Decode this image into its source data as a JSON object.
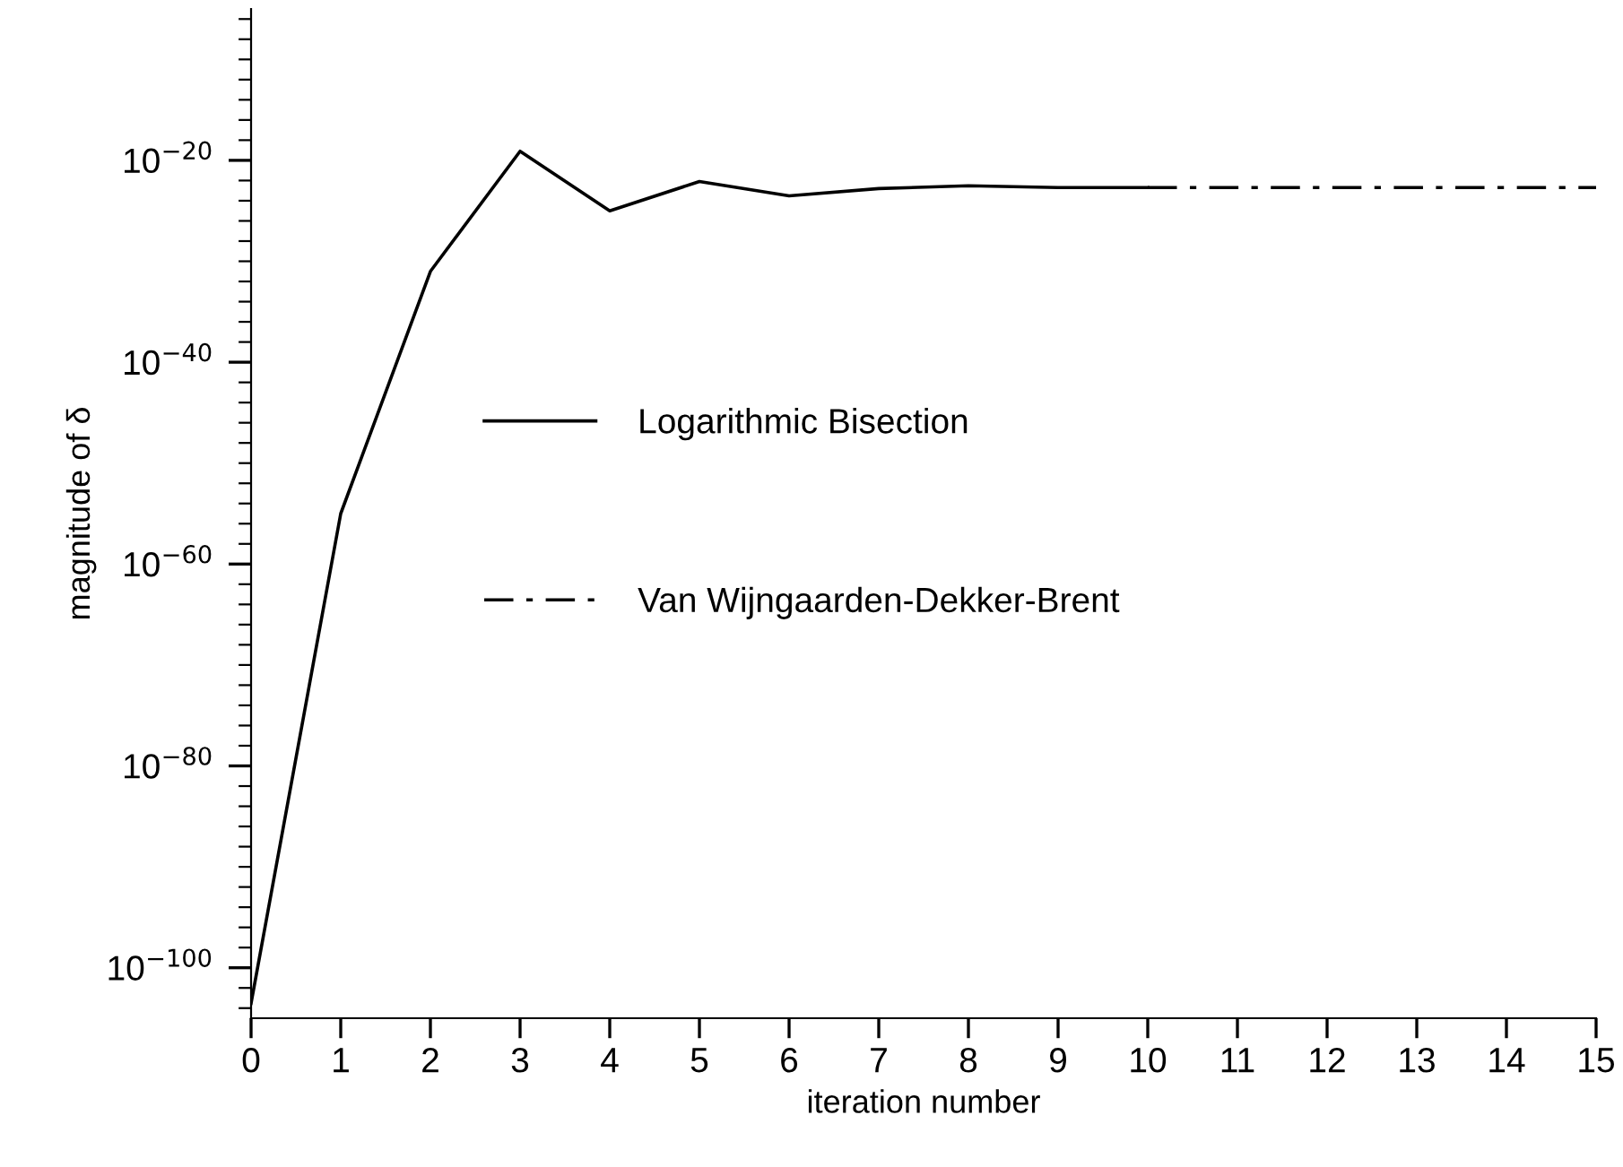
{
  "chart_data": {
    "type": "line",
    "xlabel": "iteration number",
    "ylabel": "magnitude of δ",
    "log": "y",
    "xlim": [
      0,
      15
    ],
    "xticks": [
      0,
      1,
      2,
      3,
      4,
      5,
      6,
      7,
      8,
      9,
      10,
      11,
      12,
      13,
      14,
      15
    ],
    "ylim": [
      1e-105,
      1e-05
    ],
    "yticks": [
      {
        "value": 1e-20,
        "label": "10$^{−20}$"
      },
      {
        "value": 1e-40,
        "label": "10$^{−40}$"
      },
      {
        "value": 1e-60,
        "label": "10$^{−60}$"
      },
      {
        "value": 1e-80,
        "label": "10$^{−80}$"
      },
      {
        "value": 1e-100,
        "label": "10$^{−100}$"
      }
    ],
    "grid": false,
    "legend": "center left",
    "marker": "none",
    "series": [
      {
        "name": "Logarithmic Bisection",
        "color": "#000000",
        "line_style": "solid",
        "x": [
          0,
          1,
          2,
          3,
          4,
          5,
          6,
          7,
          8,
          9,
          10
        ],
        "values": [
          3e-104,
          1e-55,
          1e-31,
          8e-20,
          1e-25,
          8e-23,
          3e-24,
          1.6e-23,
          3e-23,
          2e-23,
          2e-23
        ]
      },
      {
        "name": "Van Wijngaarden-Dekker-Brent",
        "color": "#000000",
        "line_style": "dashdot",
        "x": [
          10,
          11,
          12,
          13,
          14,
          15
        ],
        "values": [
          2e-23,
          2e-23,
          2e-23,
          2e-23,
          2e-23,
          2e-23
        ]
      }
    ]
  }
}
